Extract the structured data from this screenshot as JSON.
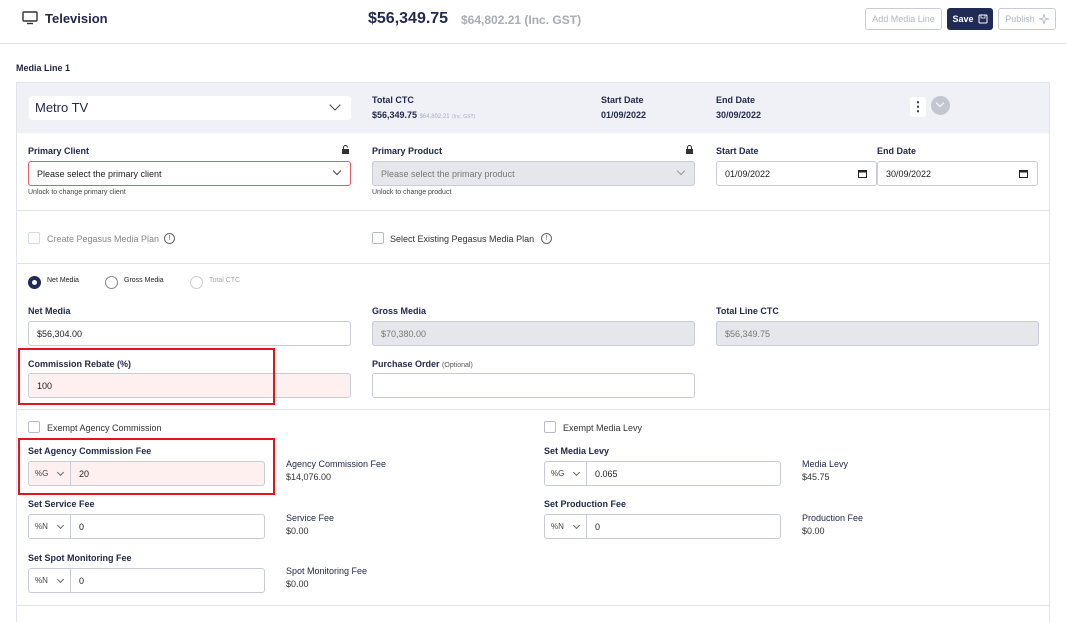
{
  "header": {
    "title": "Television",
    "total": "$56,349.75",
    "total_gst": "$64,802.21 (Inc. GST)",
    "add_label": "Add Media Line",
    "save_label": "Save",
    "publish_label": "Publish"
  },
  "section_label": "Media Line 1",
  "line": {
    "station": "Metro TV",
    "ctc_label": "Total CTC",
    "ctc_value": "$56,349.75",
    "ctc_gst": "$64,802.21",
    "ctc_gst_suffix": "(Inc. GST)",
    "start_label": "Start Date",
    "start_value": "01/09/2022",
    "end_label": "End Date",
    "end_value": "30/09/2022",
    "kebab": "⋮"
  },
  "client": {
    "label": "Primary Client",
    "value": "Please select the primary client",
    "help": "Unlock to change primary client"
  },
  "product": {
    "label": "Primary Product",
    "value": "Please select the primary product",
    "help": "Unlock to change product"
  },
  "dates": {
    "start_label": "Start Date",
    "start_value": "01/09/2022",
    "end_label": "End Date",
    "end_value": "30/09/2022"
  },
  "pegasus": {
    "create_label": "Create Pegasus Media Plan",
    "select_label": "Select Existing Pegasus Media Plan",
    "info_glyph": "!"
  },
  "modes": {
    "net": "Net Media",
    "gross": "Gross Media",
    "ctc": "Total CTC"
  },
  "values": {
    "net_label": "Net Media",
    "net_value": "$56,304.00",
    "gross_label": "Gross Media",
    "gross_value": "$70,380.00",
    "ctc_label": "Total Line CTC",
    "ctc_value": "$56,349.75",
    "rebate_label": "Commission Rebate (%)",
    "rebate_value": "100",
    "po_label": "Purchase Order",
    "po_optional": "(Optional)"
  },
  "fees": {
    "exempt_agency": "Exempt Agency Commission",
    "exempt_levy": "Exempt Media Levy",
    "agency_label": "Set Agency Commission Fee",
    "agency_type": "%G",
    "agency_value": "20",
    "agency_name": "Agency Commission Fee",
    "agency_amount": "$14,076.00",
    "levy_label": "Set Media Levy",
    "levy_type": "%G",
    "levy_value": "0.065",
    "levy_name": "Media Levy",
    "levy_amount": "$45.75",
    "service_label": "Set Service Fee",
    "service_type": "%N",
    "service_value": "0",
    "service_name": "Service Fee",
    "service_amount": "$0.00",
    "production_label": "Set Production Fee",
    "production_type": "%N",
    "production_value": "0",
    "production_name": "Production Fee",
    "production_amount": "$0.00",
    "spot_label": "Set Spot Monitoring Fee",
    "spot_type": "%N",
    "spot_value": "0",
    "spot_name": "Spot Monitoring Fee",
    "spot_amount": "$0.00"
  },
  "colors": {
    "navy": "#1f2a55",
    "highlight": "#e3141e",
    "error_border": "#e45a6a"
  }
}
